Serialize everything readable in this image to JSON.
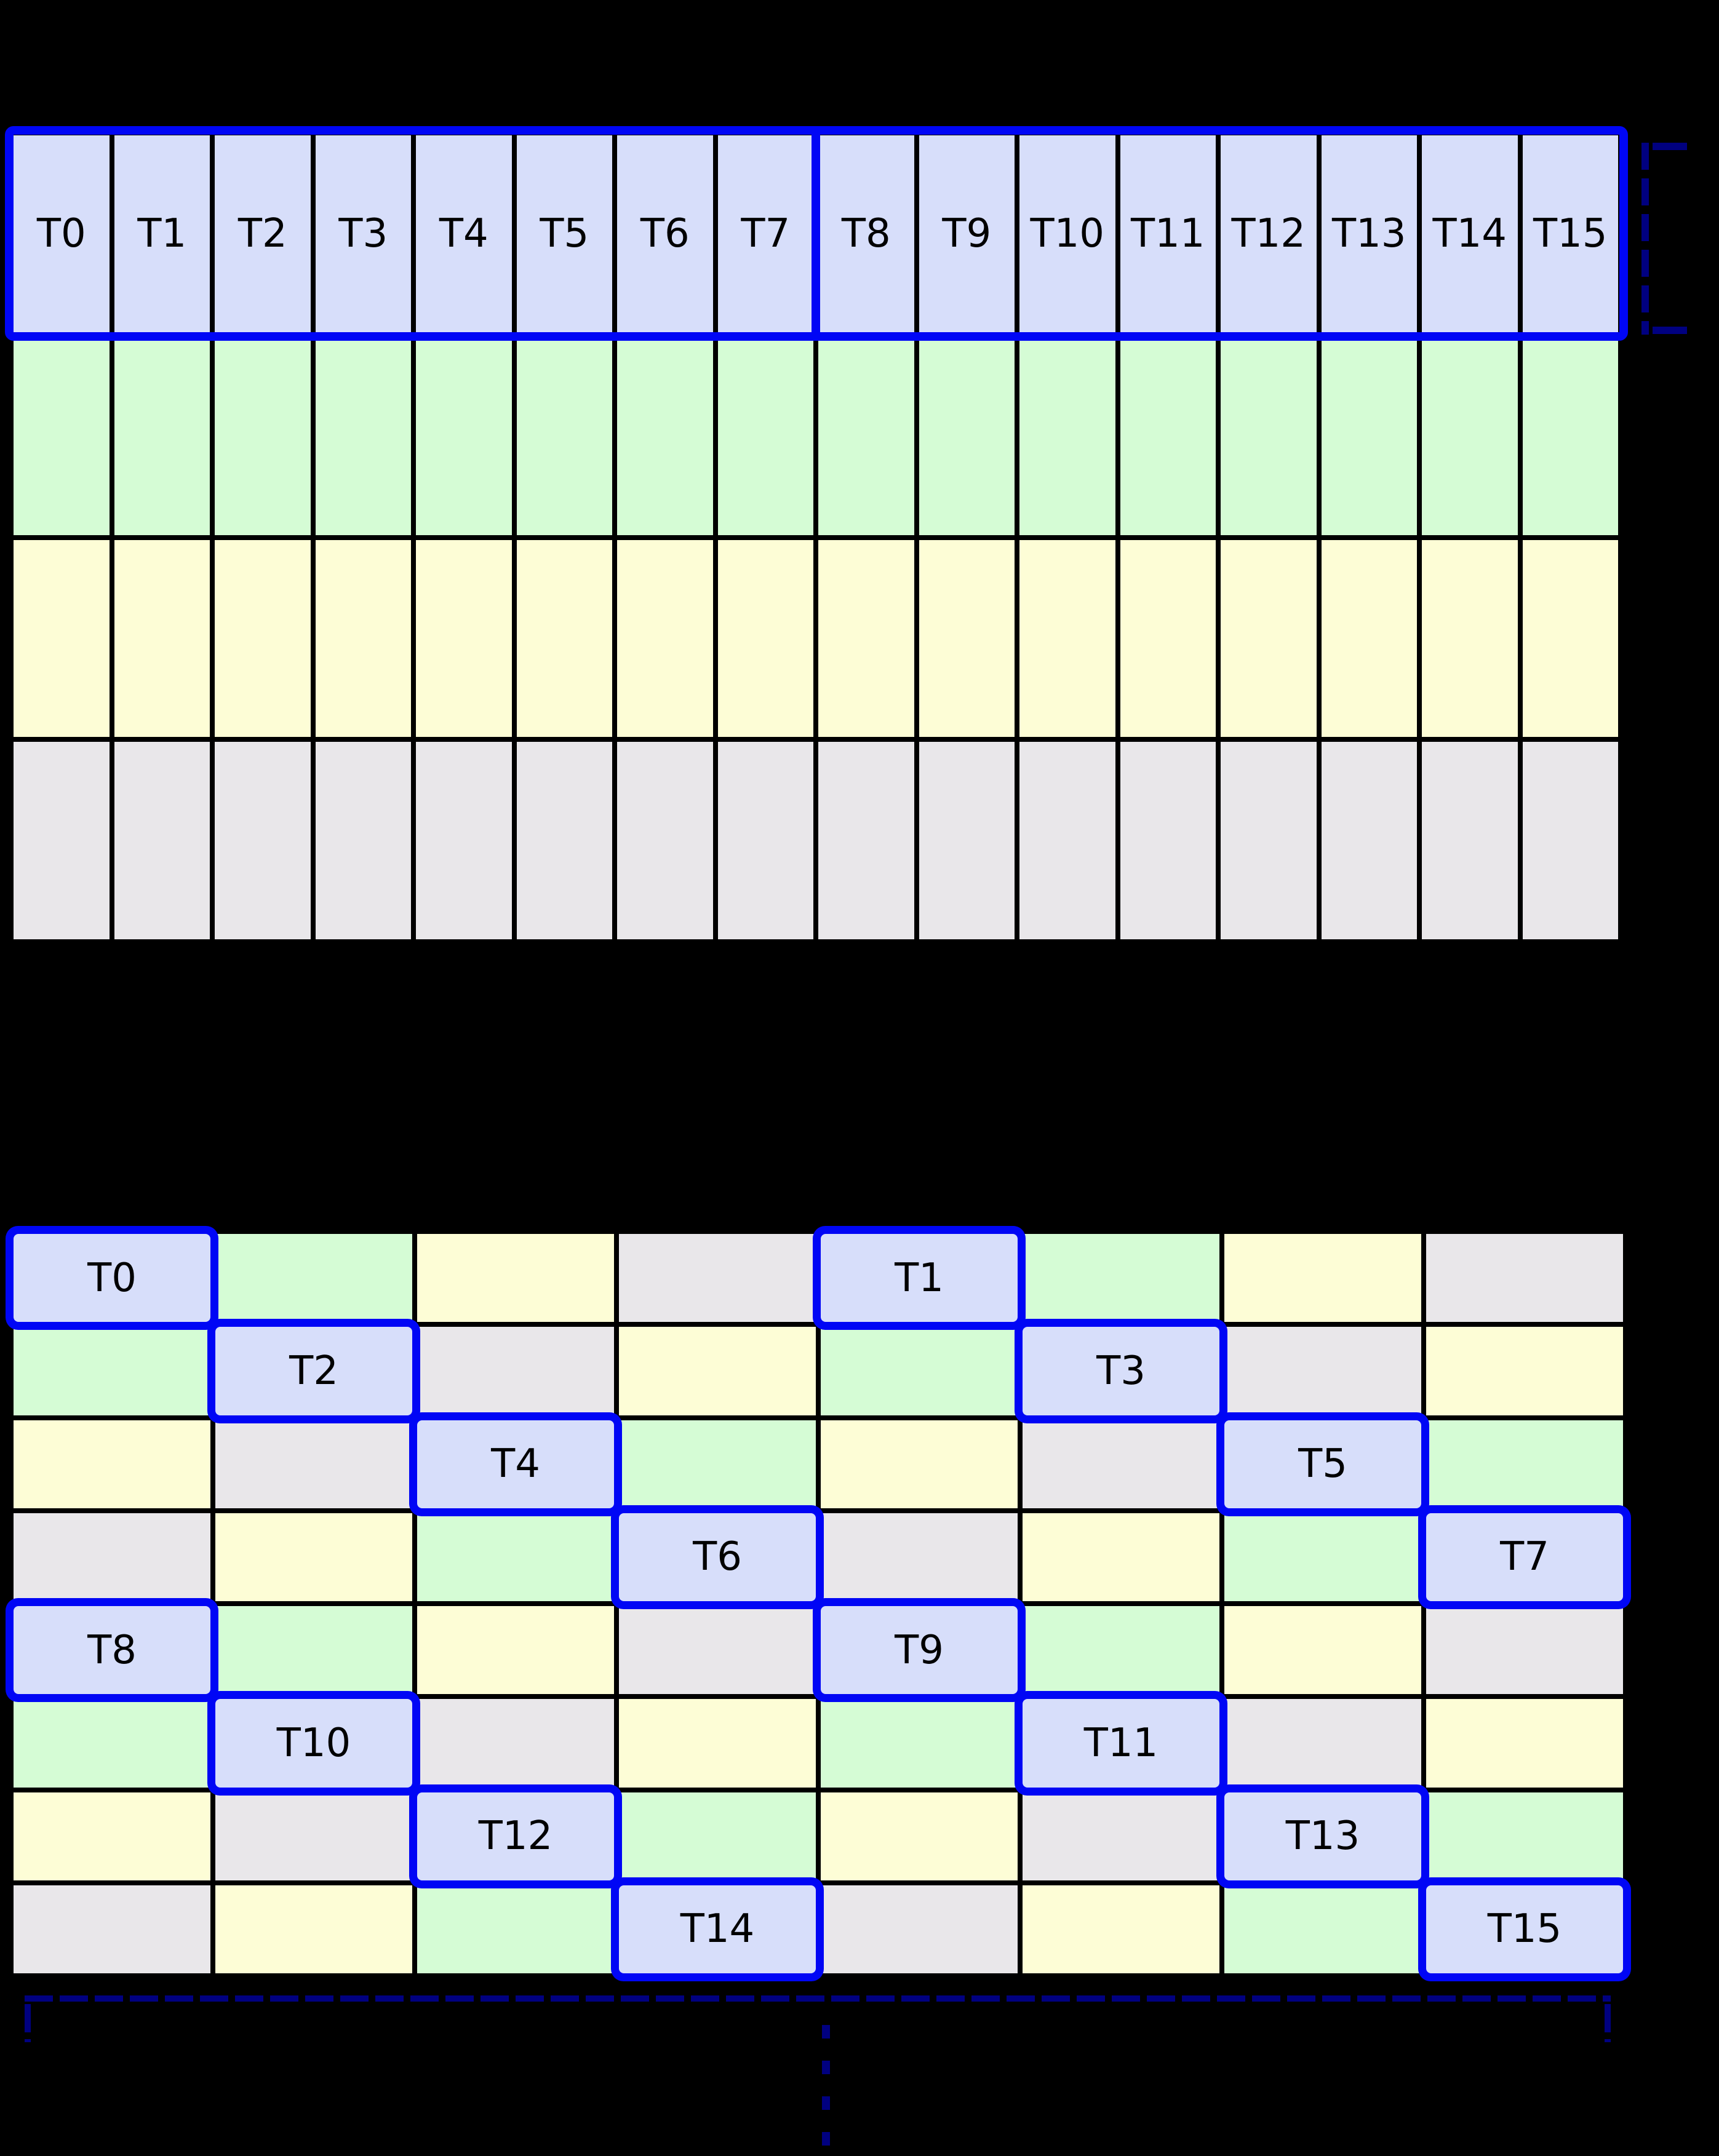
{
  "palette": {
    "background": "#000000",
    "cell_lavender": "#d7defa",
    "cell_green": "#d5fcd5",
    "cell_yellow": "#fdfdd6",
    "cell_gray": "#e9e7ea",
    "warp_blue": "#0006f5",
    "bracket_navy": "#000080",
    "grid_line": "#000000",
    "label_color": "#000000"
  },
  "row_major_grid": {
    "rows": 4,
    "cols": 16,
    "row_colors": [
      "cell_lavender",
      "cell_green",
      "cell_yellow",
      "cell_gray"
    ],
    "thread_labels": [
      "T0",
      "T1",
      "T2",
      "T3",
      "T4",
      "T5",
      "T6",
      "T7",
      "T8",
      "T9",
      "T10",
      "T11",
      "T12",
      "T13",
      "T14",
      "T15"
    ]
  },
  "swizzled_grid": {
    "rows": 8,
    "cols": 8,
    "cells": [
      [
        {
          "color": "cell_lavender",
          "label": "T0"
        },
        {
          "color": "cell_green"
        },
        {
          "color": "cell_yellow"
        },
        {
          "color": "cell_gray"
        },
        {
          "color": "cell_lavender",
          "label": "T1"
        },
        {
          "color": "cell_green"
        },
        {
          "color": "cell_yellow"
        },
        {
          "color": "cell_gray"
        }
      ],
      [
        {
          "color": "cell_green"
        },
        {
          "color": "cell_lavender",
          "label": "T2"
        },
        {
          "color": "cell_gray"
        },
        {
          "color": "cell_yellow"
        },
        {
          "color": "cell_green"
        },
        {
          "color": "cell_lavender",
          "label": "T3"
        },
        {
          "color": "cell_gray"
        },
        {
          "color": "cell_yellow"
        }
      ],
      [
        {
          "color": "cell_yellow"
        },
        {
          "color": "cell_gray"
        },
        {
          "color": "cell_lavender",
          "label": "T4"
        },
        {
          "color": "cell_green"
        },
        {
          "color": "cell_yellow"
        },
        {
          "color": "cell_gray"
        },
        {
          "color": "cell_lavender",
          "label": "T5"
        },
        {
          "color": "cell_green"
        }
      ],
      [
        {
          "color": "cell_gray"
        },
        {
          "color": "cell_yellow"
        },
        {
          "color": "cell_green"
        },
        {
          "color": "cell_lavender",
          "label": "T6"
        },
        {
          "color": "cell_gray"
        },
        {
          "color": "cell_yellow"
        },
        {
          "color": "cell_green"
        },
        {
          "color": "cell_lavender",
          "label": "T7"
        }
      ],
      [
        {
          "color": "cell_lavender",
          "label": "T8"
        },
        {
          "color": "cell_green"
        },
        {
          "color": "cell_yellow"
        },
        {
          "color": "cell_gray"
        },
        {
          "color": "cell_lavender",
          "label": "T9"
        },
        {
          "color": "cell_green"
        },
        {
          "color": "cell_yellow"
        },
        {
          "color": "cell_gray"
        }
      ],
      [
        {
          "color": "cell_green"
        },
        {
          "color": "cell_lavender",
          "label": "T10"
        },
        {
          "color": "cell_gray"
        },
        {
          "color": "cell_yellow"
        },
        {
          "color": "cell_green"
        },
        {
          "color": "cell_lavender",
          "label": "T11"
        },
        {
          "color": "cell_gray"
        },
        {
          "color": "cell_yellow"
        }
      ],
      [
        {
          "color": "cell_yellow"
        },
        {
          "color": "cell_gray"
        },
        {
          "color": "cell_lavender",
          "label": "T12"
        },
        {
          "color": "cell_green"
        },
        {
          "color": "cell_yellow"
        },
        {
          "color": "cell_gray"
        },
        {
          "color": "cell_lavender",
          "label": "T13"
        },
        {
          "color": "cell_green"
        }
      ],
      [
        {
          "color": "cell_gray"
        },
        {
          "color": "cell_yellow"
        },
        {
          "color": "cell_green"
        },
        {
          "color": "cell_lavender",
          "label": "T14"
        },
        {
          "color": "cell_gray"
        },
        {
          "color": "cell_yellow"
        },
        {
          "color": "cell_green"
        },
        {
          "color": "cell_lavender",
          "label": "T15"
        }
      ]
    ]
  }
}
